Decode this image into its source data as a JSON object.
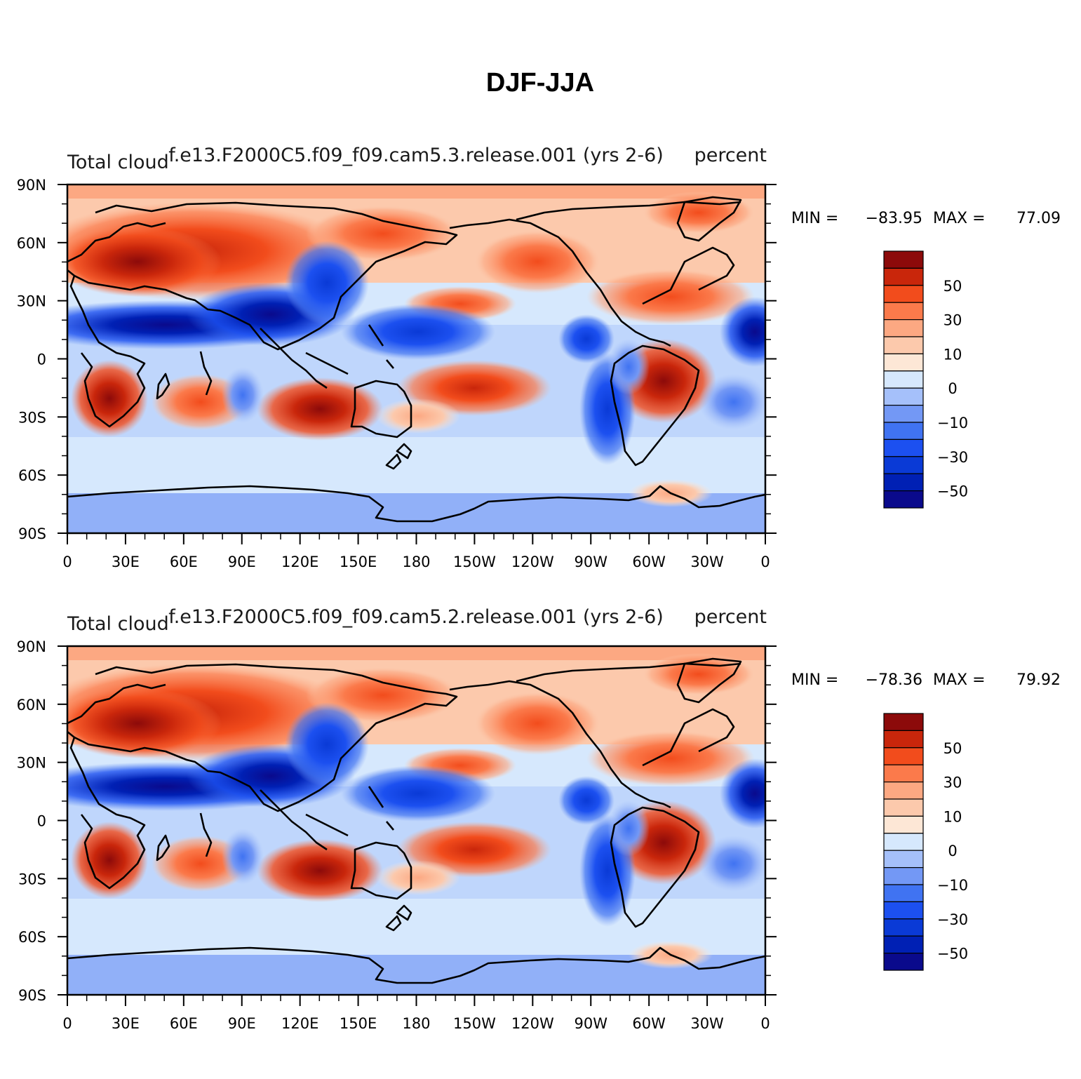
{
  "figure_title": "DJF-JJA",
  "colorbar_colors": [
    "#0a0a8c",
    "#0020b4",
    "#0a3ad6",
    "#1c50f0",
    "#4073f2",
    "#7398f5",
    "#a5c0fa",
    "#d6e8fd",
    "#fde7d6",
    "#fcc9ac",
    "#fca882",
    "#fb7a4b",
    "#f24c1c",
    "#c9260b",
    "#8c0a0a"
  ],
  "chart_data": [
    {
      "type": "heatmap",
      "title_left": "Total cloud",
      "title_center": "f.e13.F2000C5.f09_f09.cam5.3.release.001 (yrs 2-6)",
      "title_right": "percent",
      "min_label": "MIN =",
      "min_value": "−83.95",
      "max_label": "MAX =",
      "max_value": "77.09",
      "x_ticks": [
        "0",
        "30E",
        "60E",
        "90E",
        "120E",
        "150E",
        "180",
        "150W",
        "120W",
        "90W",
        "60W",
        "30W",
        "0"
      ],
      "y_ticks": [
        "90N",
        "60N",
        "30N",
        "0",
        "30S",
        "60S",
        "90S"
      ],
      "colorbar_labels": [
        "50",
        "30",
        "10",
        "0",
        "−10",
        "−30",
        "−50"
      ],
      "lon_range": [
        0,
        360
      ],
      "lat_range": [
        -90,
        90
      ]
    },
    {
      "type": "heatmap",
      "title_left": "Total cloud",
      "title_center": "f.e13.F2000C5.f09_f09.cam5.2.release.001 (yrs 2-6)",
      "title_right": "percent",
      "min_label": "MIN =",
      "min_value": "−78.36",
      "max_label": "MAX =",
      "max_value": "79.92",
      "x_ticks": [
        "0",
        "30E",
        "60E",
        "90E",
        "120E",
        "150E",
        "180",
        "150W",
        "120W",
        "90W",
        "60W",
        "30W",
        "0"
      ],
      "y_ticks": [
        "90N",
        "60N",
        "30N",
        "0",
        "30S",
        "60S",
        "90S"
      ],
      "colorbar_labels": [
        "50",
        "30",
        "10",
        "0",
        "−10",
        "−30",
        "−50"
      ],
      "lon_range": [
        0,
        360
      ],
      "lat_range": [
        -90,
        90
      ]
    }
  ]
}
